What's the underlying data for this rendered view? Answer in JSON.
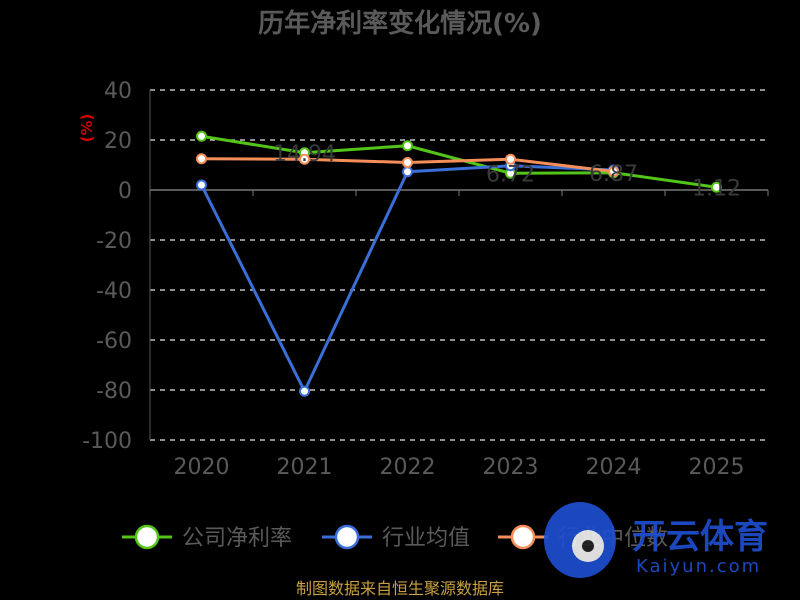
{
  "chart_data": {
    "type": "line",
    "title": "历年净利率变化情况(%)",
    "ylabel": "(%)",
    "xlabel": "",
    "categories": [
      "2020",
      "2021",
      "2022",
      "2023",
      "2024",
      "2025"
    ],
    "ylim": [
      -100,
      40
    ],
    "yticks": [
      40,
      20,
      0,
      -20,
      -40,
      -60,
      -80,
      -100
    ],
    "grid": true,
    "legend_position": "bottom",
    "series": [
      {
        "name": "公司净利率",
        "color": "#52c41a",
        "values": [
          21.5,
          14.9,
          17.7,
          6.7,
          6.9,
          1.1
        ]
      },
      {
        "name": "行业均值",
        "color": "#3a6fd8",
        "values": [
          2.0,
          -80.5,
          7.3,
          9.7,
          8.0,
          null
        ]
      },
      {
        "name": "行业中位数",
        "color": "#f58f5a",
        "values": [
          12.5,
          12.3,
          11.0,
          12.3,
          7.4,
          null
        ]
      }
    ],
    "data_labels": [
      {
        "text": "14.94",
        "x": "2021",
        "y": 14.9
      },
      {
        "text": "6.72",
        "x": "2023",
        "y": 6.7
      },
      {
        "text": "6.87",
        "x": "2024",
        "y": 6.9
      },
      {
        "text": "1.12",
        "x": "2025",
        "y": 1.1
      }
    ]
  },
  "footer": {
    "source": "制图数据来自恒生聚源数据库"
  },
  "watermark": {
    "text": "开云体育",
    "sub": "Kaiyun.com"
  }
}
